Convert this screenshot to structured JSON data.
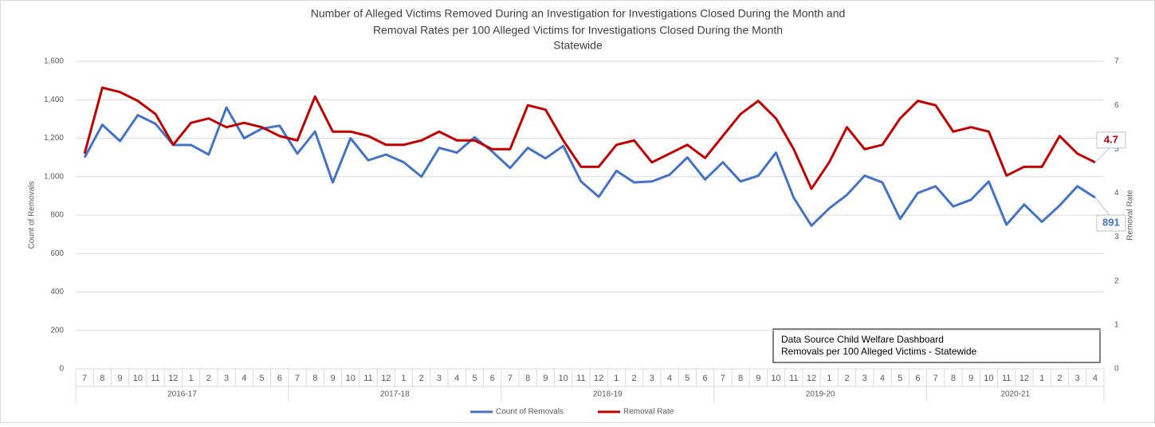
{
  "chart_data": {
    "type": "line",
    "title": [
      "Number of Alleged Victims Removed During an Investigation for Investigations Closed During the Month and",
      "Removal Rates per 100 Alleged Victims for Investigations Closed During the Month",
      "Statewide"
    ],
    "y_label": "Count of Removals",
    "y2_label": "Removal Rate",
    "category_groups": [
      {
        "name": "2016-17",
        "categories": [
          "7",
          "8",
          "9",
          "10",
          "11",
          "12",
          "1",
          "2",
          "3",
          "4",
          "5",
          "6"
        ]
      },
      {
        "name": "2017-18",
        "categories": [
          "7",
          "8",
          "9",
          "10",
          "11",
          "12",
          "1",
          "2",
          "3",
          "4",
          "5",
          "6"
        ]
      },
      {
        "name": "2018-19",
        "categories": [
          "7",
          "8",
          "9",
          "10",
          "11",
          "12",
          "1",
          "2",
          "3",
          "4",
          "5",
          "6"
        ]
      },
      {
        "name": "2019-20",
        "categories": [
          "7",
          "8",
          "9",
          "10",
          "11",
          "12",
          "1",
          "2",
          "3",
          "4",
          "5",
          "6"
        ]
      },
      {
        "name": "2020-21",
        "categories": [
          "7",
          "8",
          "9",
          "10",
          "11",
          "12",
          "1",
          "2",
          "3",
          "4"
        ]
      }
    ],
    "series": [
      {
        "name": "Count of Removals",
        "color": "#4472c4",
        "axis": "y",
        "values": [
          1100,
          1270,
          1185,
          1320,
          1275,
          1165,
          1165,
          1115,
          1360,
          1200,
          1250,
          1265,
          1120,
          1235,
          970,
          1200,
          1085,
          1115,
          1075,
          1000,
          1150,
          1125,
          1205,
          1130,
          1045,
          1150,
          1095,
          1160,
          975,
          895,
          1030,
          970,
          975,
          1010,
          1100,
          985,
          1075,
          975,
          1005,
          1125,
          890,
          745,
          835,
          905,
          1005,
          970,
          780,
          915,
          950,
          845,
          880,
          975,
          750,
          855,
          765,
          850,
          950,
          891
        ]
      },
      {
        "name": "Removal Rate",
        "color": "#c00000",
        "axis": "y2",
        "values": [
          4.9,
          6.4,
          6.3,
          6.1,
          5.8,
          5.1,
          5.6,
          5.7,
          5.5,
          5.6,
          5.5,
          5.3,
          5.2,
          6.2,
          5.4,
          5.4,
          5.3,
          5.1,
          5.1,
          5.2,
          5.4,
          5.2,
          5.2,
          5.0,
          5.0,
          6.0,
          5.9,
          5.2,
          4.6,
          4.6,
          5.1,
          5.2,
          4.7,
          4.9,
          5.1,
          4.8,
          5.3,
          5.8,
          6.1,
          5.7,
          5.0,
          4.1,
          4.7,
          5.5,
          5.0,
          5.1,
          5.7,
          6.1,
          6.0,
          5.4,
          5.5,
          5.4,
          4.4,
          4.6,
          4.6,
          5.3,
          4.9,
          4.7
        ]
      }
    ],
    "data_labels": "last",
    "ylim": [
      0,
      1600
    ],
    "yticks": [
      0,
      200,
      400,
      600,
      800,
      {
        "value": 1000,
        "label": "1,000"
      },
      {
        "value": 1200,
        "label": "1,200"
      },
      {
        "value": 1400,
        "label": "1,400"
      },
      {
        "value": 1600,
        "label": "1,600"
      }
    ],
    "y2lim": [
      0,
      7
    ],
    "y2ticks": [
      0,
      1,
      2,
      3,
      4,
      5,
      6,
      7
    ],
    "grid": true,
    "legend": "bottom",
    "note": [
      "Data Source Child Welfare Dashboard",
      "Removals per 100 Alleged Victims - Statewide"
    ]
  }
}
